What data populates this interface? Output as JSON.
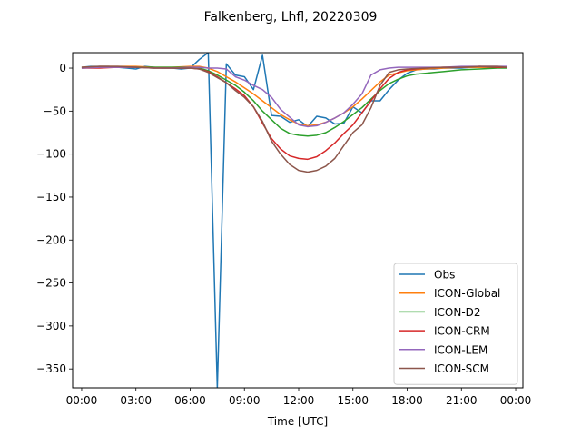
{
  "chart_data": {
    "type": "line",
    "title": "Falkenberg, Lhfl, 20220309",
    "xlabel": "Time [UTC]",
    "ylabel": "",
    "xlim": [
      -0.5,
      24.4
    ],
    "ylim": [
      -372,
      18
    ],
    "grid": false,
    "legend_position": "bottom-right",
    "xticks": [
      0,
      3,
      6,
      9,
      12,
      15,
      18,
      21,
      24
    ],
    "xtick_labels": [
      "00:00",
      "03:00",
      "06:00",
      "09:00",
      "12:00",
      "15:00",
      "18:00",
      "21:00",
      "00:00"
    ],
    "yticks": [
      0,
      -50,
      -100,
      -150,
      -200,
      -250,
      -300,
      -350
    ],
    "ytick_labels": [
      "0",
      "−50",
      "−100",
      "−150",
      "−200",
      "−250",
      "−300",
      "−350"
    ],
    "series": [
      {
        "name": "Obs",
        "color": "#1f77b4",
        "x": [
          0,
          0.5,
          1,
          1.5,
          2,
          2.5,
          3,
          3.5,
          4,
          4.5,
          5,
          5.5,
          6,
          6.5,
          7,
          7.5,
          8,
          8.5,
          9,
          9.5,
          10,
          10.5,
          11,
          11.5,
          12,
          12.5,
          13,
          13.5,
          14,
          14.5,
          15,
          15.5,
          16,
          16.5,
          17,
          17.5,
          18,
          18.5,
          19,
          19.5,
          20,
          20.5,
          21,
          21.5,
          22,
          22.5,
          23,
          23.5
        ],
        "y": [
          1,
          2,
          2,
          2,
          1,
          0,
          -1,
          2,
          1,
          0,
          0,
          -1,
          0,
          10,
          18,
          -372,
          5,
          -8,
          -10,
          -25,
          15,
          -55,
          -56,
          -63,
          -60,
          -68,
          -56,
          -58,
          -65,
          -64,
          -45,
          -52,
          -38,
          -38,
          -25,
          -14,
          -6,
          -2,
          -1,
          -1,
          0,
          0,
          0,
          1,
          1,
          1,
          1,
          1
        ]
      },
      {
        "name": "ICON-Global",
        "color": "#ff7f0e",
        "x": [
          0,
          1,
          2,
          3,
          4,
          5,
          6,
          6.5,
          7,
          7.5,
          8,
          8.5,
          9,
          9.5,
          10,
          10.5,
          11,
          11.5,
          12,
          12.5,
          13,
          13.5,
          14,
          14.5,
          15,
          15.5,
          16,
          16.5,
          17,
          18,
          19,
          20,
          21,
          22,
          23,
          23.5
        ],
        "y": [
          1,
          2,
          2,
          2,
          1,
          1,
          2,
          2,
          0,
          -4,
          -10,
          -16,
          -23,
          -30,
          -38,
          -46,
          -54,
          -60,
          -65,
          -67,
          -66,
          -63,
          -58,
          -52,
          -45,
          -36,
          -26,
          -16,
          -8,
          -3,
          -1,
          0,
          1,
          1,
          1,
          1
        ]
      },
      {
        "name": "ICON-D2",
        "color": "#2ca02c",
        "x": [
          0,
          1,
          2,
          3,
          4,
          5,
          6,
          6.5,
          7,
          7.5,
          8,
          8.5,
          9,
          9.5,
          10,
          10.5,
          11,
          11.5,
          12,
          12.5,
          13,
          13.5,
          14,
          14.5,
          15,
          15.5,
          16,
          16.5,
          17,
          17.5,
          18,
          18.5,
          19,
          19.5,
          20,
          20.5,
          21,
          22,
          23,
          23.5
        ],
        "y": [
          0,
          1,
          1,
          1,
          1,
          1,
          1,
          0,
          -3,
          -8,
          -14,
          -20,
          -28,
          -38,
          -50,
          -60,
          -70,
          -76,
          -78,
          -79,
          -78,
          -75,
          -69,
          -62,
          -54,
          -46,
          -36,
          -26,
          -18,
          -13,
          -9,
          -7,
          -6,
          -5,
          -4,
          -3,
          -2,
          -1,
          0,
          0
        ]
      },
      {
        "name": "ICON-CRM",
        "color": "#d62728",
        "x": [
          0,
          1,
          2,
          3,
          4,
          5,
          6,
          6.5,
          7,
          7.5,
          8,
          8.5,
          9,
          9.5,
          10,
          10.5,
          11,
          11.5,
          12,
          12.5,
          13,
          13.5,
          14,
          14.5,
          15,
          15.5,
          16,
          16.5,
          17,
          17.5,
          18,
          19,
          20,
          21,
          22,
          23,
          23.5
        ],
        "y": [
          0,
          0,
          1,
          1,
          0,
          0,
          0,
          -1,
          -4,
          -10,
          -17,
          -24,
          -32,
          -45,
          -64,
          -82,
          -94,
          -102,
          -105,
          -106,
          -103,
          -96,
          -87,
          -76,
          -66,
          -52,
          -38,
          -24,
          -12,
          -5,
          -2,
          0,
          1,
          1,
          2,
          1,
          1
        ]
      },
      {
        "name": "ICON-LEM",
        "color": "#9467bd",
        "x": [
          0,
          1,
          2,
          3,
          4,
          5,
          6,
          6.5,
          7,
          7.5,
          8,
          8.5,
          9,
          9.5,
          10,
          10.5,
          11,
          11.5,
          12,
          12.5,
          13,
          13.5,
          14,
          14.5,
          15,
          15.5,
          16,
          16.5,
          17,
          17.5,
          18,
          19,
          20,
          21,
          22,
          23,
          23.5
        ],
        "y": [
          0,
          1,
          1,
          1,
          0,
          0,
          1,
          1,
          0,
          0,
          -1,
          -10,
          -14,
          -20,
          -25,
          -34,
          -48,
          -57,
          -66,
          -68,
          -67,
          -63,
          -58,
          -52,
          -42,
          -30,
          -8,
          -2,
          0,
          1,
          1,
          1,
          1,
          2,
          2,
          2,
          2
        ]
      },
      {
        "name": "ICON-SCM",
        "color": "#8c564b",
        "x": [
          0,
          1,
          2,
          3,
          4,
          5,
          6,
          6.5,
          7,
          7.5,
          8,
          8.5,
          9,
          9.5,
          10,
          10.5,
          11,
          11.5,
          12,
          12.5,
          13,
          13.5,
          14,
          14.5,
          15,
          15.5,
          16,
          16.5,
          17,
          17.5,
          18,
          19,
          20,
          21,
          22,
          23,
          23.5
        ],
        "y": [
          1,
          2,
          2,
          1,
          0,
          0,
          0,
          -1,
          -5,
          -11,
          -17,
          -26,
          -34,
          -45,
          -62,
          -85,
          -100,
          -112,
          -119,
          -121,
          -119,
          -114,
          -105,
          -90,
          -75,
          -66,
          -46,
          -20,
          -5,
          -2,
          -1,
          0,
          1,
          1,
          2,
          2,
          1
        ]
      }
    ]
  }
}
